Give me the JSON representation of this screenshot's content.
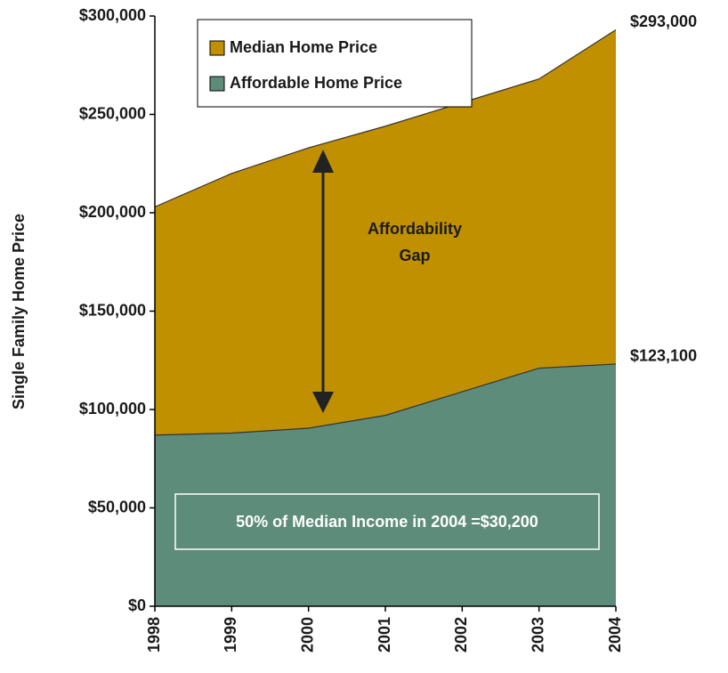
{
  "chart_data": {
    "type": "area",
    "y_axis_label": "Single Family Home Price",
    "categories": [
      "1998",
      "1999",
      "2000",
      "2001",
      "2002",
      "2003",
      "2004"
    ],
    "series": [
      {
        "name": "Median Home Price",
        "color": "#c09000",
        "values": [
          203000,
          220000,
          233000,
          244000,
          256000,
          268000,
          293000
        ],
        "value_labels": [
          null,
          null,
          null,
          null,
          null,
          null,
          "$293,000"
        ]
      },
      {
        "name": "Affordable Home Price",
        "color": "#5e8c7a",
        "values": [
          87000,
          88000,
          90500,
          97000,
          109000,
          121000,
          123100
        ],
        "value_labels": [
          null,
          null,
          null,
          null,
          null,
          null,
          "$123,100"
        ]
      }
    ],
    "ylim": [
      0,
      300000
    ],
    "yticks": [
      {
        "value": 0,
        "label": "$0"
      },
      {
        "value": 50000,
        "label": "$50,000"
      },
      {
        "value": 100000,
        "label": "$100,000"
      },
      {
        "value": 150000,
        "label": "$150,000"
      },
      {
        "value": 200000,
        "label": "$200,000"
      },
      {
        "value": 250000,
        "label": "$250,000"
      },
      {
        "value": 300000,
        "label": "$300,000"
      }
    ],
    "annotations": {
      "gap": [
        "Affordability",
        "Gap"
      ],
      "income_note": "50% of Median Income in 2004 =$30,200"
    },
    "legend": "top-left"
  }
}
